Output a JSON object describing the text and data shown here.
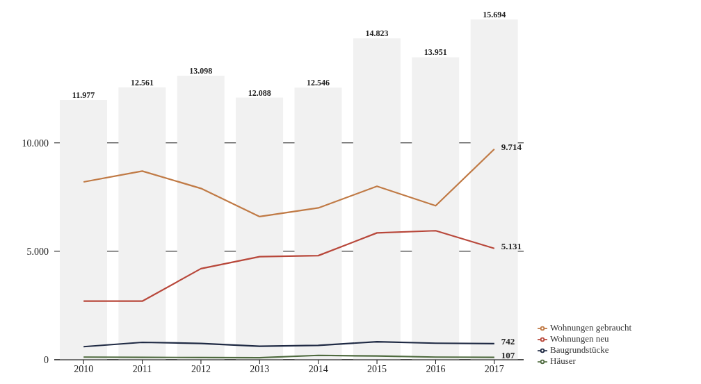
{
  "chart_data": {
    "type": "line",
    "categories": [
      "2010",
      "2011",
      "2012",
      "2013",
      "2014",
      "2015",
      "2016",
      "2017"
    ],
    "series": [
      {
        "type": "bar",
        "color": "#f1f1f1",
        "values": [
          11977,
          12561,
          13098,
          12088,
          12546,
          14823,
          13951,
          15694
        ],
        "value_labels": [
          "11.977",
          "12.561",
          "13.098",
          "12.088",
          "12.546",
          "14.823",
          "13.951",
          "15.694"
        ]
      },
      {
        "name": "Wohnungen gebraucht",
        "color": "#c07a45",
        "values": [
          8200,
          8700,
          7900,
          6600,
          7000,
          8000,
          7100,
          9714
        ],
        "value_labels": [
          null,
          null,
          null,
          null,
          null,
          null,
          null,
          "9.714"
        ]
      },
      {
        "name": "Wohnungen neu",
        "color": "#b8473a",
        "values": [
          2700,
          2700,
          4200,
          4750,
          4800,
          5850,
          5950,
          5131
        ],
        "value_labels": [
          null,
          null,
          null,
          null,
          null,
          null,
          null,
          "5.131"
        ]
      },
      {
        "name": "Baugrundstücke",
        "color": "#1f2a44",
        "values": [
          600,
          800,
          750,
          620,
          660,
          830,
          760,
          742
        ],
        "value_labels": [
          null,
          null,
          null,
          null,
          null,
          null,
          null,
          "742"
        ]
      },
      {
        "name": "Häuser",
        "color": "#4f6b3f",
        "values": [
          120,
          110,
          100,
          90,
          200,
          170,
          120,
          107
        ],
        "value_labels": [
          null,
          null,
          null,
          null,
          null,
          null,
          null,
          "107"
        ]
      }
    ],
    "ylim": [
      0,
      15694
    ],
    "yticks": [
      {
        "value": 0,
        "label": "0"
      },
      {
        "value": 5000,
        "label": "5.000"
      },
      {
        "value": 10000,
        "label": "10.000"
      }
    ],
    "grid": "y",
    "legend": "bottom right",
    "marker": "none",
    "line_style": "solid"
  }
}
